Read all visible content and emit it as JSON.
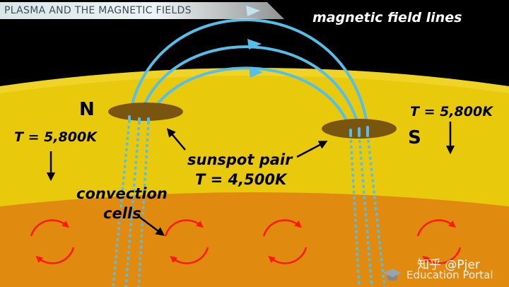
{
  "title": "PLASMA AND THE MAGNETIC FIELDS",
  "field_lines_label": "magnetic field lines",
  "north_label": "N",
  "south_label": "S",
  "temp_left": "T = 5,800K",
  "temp_right": "T = 5,800K",
  "sunspot_label": "sunspot pair",
  "sunspot_temp": "T = 4,500K",
  "convection_label_1": "convection",
  "convection_label_2": "cells",
  "watermark": "知乎 @Pjer",
  "brand": "Education Portal",
  "colors": {
    "space": "#000000",
    "photosphere": "#e8c90c",
    "convection_zone": "#e08a10",
    "field_line": "#55bfe8",
    "sunspot": "#7a5510",
    "cell_arrow": "#ff1a0a"
  }
}
